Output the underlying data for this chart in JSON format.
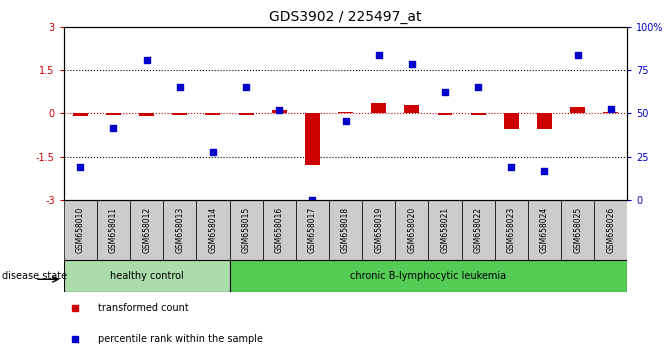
{
  "title": "GDS3902 / 225497_at",
  "samples": [
    "GSM658010",
    "GSM658011",
    "GSM658012",
    "GSM658013",
    "GSM658014",
    "GSM658015",
    "GSM658016",
    "GSM658017",
    "GSM658018",
    "GSM658019",
    "GSM658020",
    "GSM658021",
    "GSM658022",
    "GSM658023",
    "GSM658024",
    "GSM658025",
    "GSM658026"
  ],
  "red_values": [
    -0.1,
    -0.05,
    -0.1,
    -0.05,
    -0.05,
    -0.05,
    0.1,
    -1.8,
    0.05,
    0.35,
    0.3,
    -0.05,
    -0.05,
    -0.55,
    -0.55,
    0.2,
    0.05
  ],
  "blue_values": [
    -1.85,
    -0.5,
    1.85,
    0.9,
    -1.35,
    0.9,
    0.1,
    -3.0,
    -0.25,
    2.0,
    1.7,
    0.75,
    0.9,
    -1.85,
    -2.0,
    2.0,
    0.15
  ],
  "healthy_control_count": 5,
  "disease_state_label": "disease state",
  "healthy_label": "healthy control",
  "leukemia_label": "chronic B-lymphocytic leukemia",
  "legend_red": "transformed count",
  "legend_blue": "percentile rank within the sample",
  "ylim_left": [
    -3,
    3
  ],
  "ylim_right": [
    0,
    100
  ],
  "yticks_left": [
    -3,
    -1.5,
    0,
    1.5,
    3
  ],
  "yticks_right": [
    0,
    25,
    50,
    75,
    100
  ],
  "hline_y": [
    0,
    1.5,
    -1.5
  ],
  "plot_bg": "#ffffff",
  "healthy_color": "#aaddaa",
  "leukemia_color": "#55cc55",
  "sample_bg": "#cccccc",
  "red_color": "#cc0000",
  "blue_color": "#0000cc",
  "title_fontsize": 10,
  "tick_fontsize": 7,
  "label_fontsize": 7
}
